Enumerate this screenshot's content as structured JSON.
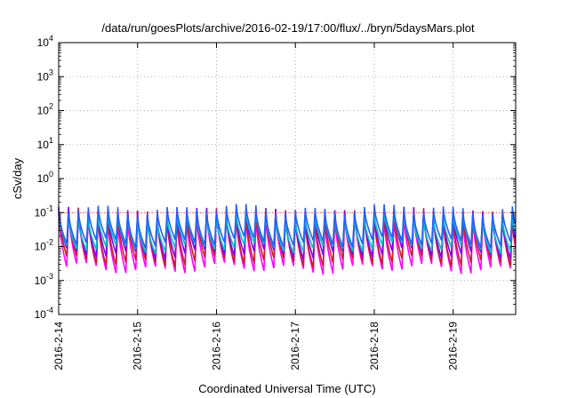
{
  "chart_data": {
    "type": "line",
    "title": "/data/run/goesPlots/archive/2016-02-19/17:00/flux/../bryn/5daysMars.plot",
    "xlabel": "Coordinated Universal Time (UTC)",
    "ylabel": "cSv/day",
    "x_scale": "time",
    "y_scale": "log",
    "xlim": [
      "2016-02-14T00:00",
      "2016-02-19T19:00"
    ],
    "ylim": [
      0.0001,
      10000
    ],
    "x_ticks": [
      "2016-2-14",
      "2016-2-15",
      "2016-2-16",
      "2016-2-17",
      "2016-2-18",
      "2016-2-19"
    ],
    "y_ticks": [
      {
        "value": 0.0001,
        "base": "10",
        "exp": "-4"
      },
      {
        "value": 0.001,
        "base": "10",
        "exp": "-3"
      },
      {
        "value": 0.01,
        "base": "10",
        "exp": "-2"
      },
      {
        "value": 0.1,
        "base": "10",
        "exp": "-1"
      },
      {
        "value": 1,
        "base": "10",
        "exp": "0"
      },
      {
        "value": 10,
        "base": "10",
        "exp": "1"
      },
      {
        "value": 100,
        "base": "10",
        "exp": "2"
      },
      {
        "value": 1000,
        "base": "10",
        "exp": "3"
      },
      {
        "value": 10000,
        "base": "10",
        "exp": "4"
      }
    ],
    "grid": true,
    "reference_line": {
      "value": 0.1,
      "color": "#ff0000",
      "style": "dotted"
    },
    "series_shape": {
      "period_hours": 3,
      "shape": "sawtooth peaks",
      "note_hours_per_day": 24
    },
    "series": [
      {
        "color": "#ff00ff",
        "peak": 0.085,
        "trough": 0.0022
      },
      {
        "color": "#cc1f1f",
        "peak": 0.095,
        "trough": 0.0035
      },
      {
        "color": "#8000ff",
        "peak": 0.1,
        "trough": 0.006
      },
      {
        "color": "#00c0c0",
        "peak": 0.08,
        "trough": 0.009
      },
      {
        "color": "#2060ff",
        "peak": 0.12,
        "trough": 0.013
      }
    ]
  }
}
